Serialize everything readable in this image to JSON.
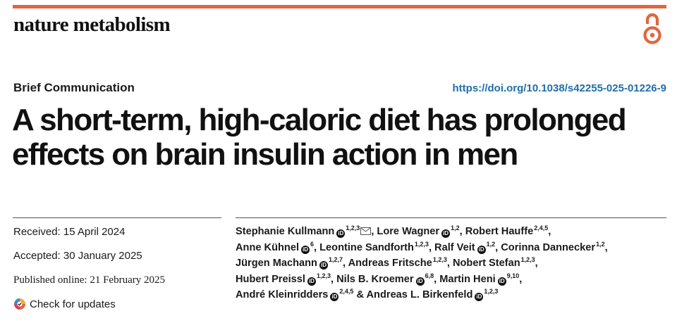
{
  "header": {
    "journal": "nature metabolism",
    "open_access_icon": "open-access-icon",
    "accent_color": "#e0663e"
  },
  "article": {
    "type": "Brief Communication",
    "doi": "https://doi.org/10.1038/s42255-025-01226-9",
    "title": "A short-term, high-caloric diet has prolonged effects on brain insulin action in men"
  },
  "dates": {
    "received": "Received: 15 April 2024",
    "accepted": "Accepted: 30 January 2025",
    "published": "Published online: 21 February 2025",
    "check_updates": "Check for updates"
  },
  "authors": [
    {
      "name": "Stephanie Kullmann",
      "aff": "1,2,3",
      "orcid": true,
      "corresponding": true
    },
    {
      "name": "Lore Wagner",
      "aff": "1,2",
      "orcid": true
    },
    {
      "name": "Robert Hauffe",
      "aff": "2,4,5",
      "orcid": false
    },
    {
      "name": "Anne Kühnel",
      "aff": "6",
      "orcid": true
    },
    {
      "name": "Leontine Sandforth",
      "aff": "1,2,3",
      "orcid": false
    },
    {
      "name": "Ralf Veit",
      "aff": "1,2",
      "orcid": true
    },
    {
      "name": "Corinna Dannecker",
      "aff": "1,2",
      "orcid": false
    },
    {
      "name": "Jürgen Machann",
      "aff": "1,2,7",
      "orcid": true
    },
    {
      "name": "Andreas Fritsche",
      "aff": "1,2,3",
      "orcid": false
    },
    {
      "name": "Nobert Stefan",
      "aff": "1,2,3",
      "orcid": false
    },
    {
      "name": "Hubert Preissl",
      "aff": "1,2,3",
      "orcid": true
    },
    {
      "name": "Nils B. Kroemer",
      "aff": "6,8",
      "orcid": true
    },
    {
      "name": "Martin Heni",
      "aff": "9,10",
      "orcid": true
    },
    {
      "name": "André Kleinridders",
      "aff": "2,4,5",
      "orcid": true
    },
    {
      "name": "Andreas L. Birkenfeld",
      "aff": "1,2,3",
      "orcid": true
    }
  ],
  "author_separator": ", ",
  "author_final_separator": " & "
}
